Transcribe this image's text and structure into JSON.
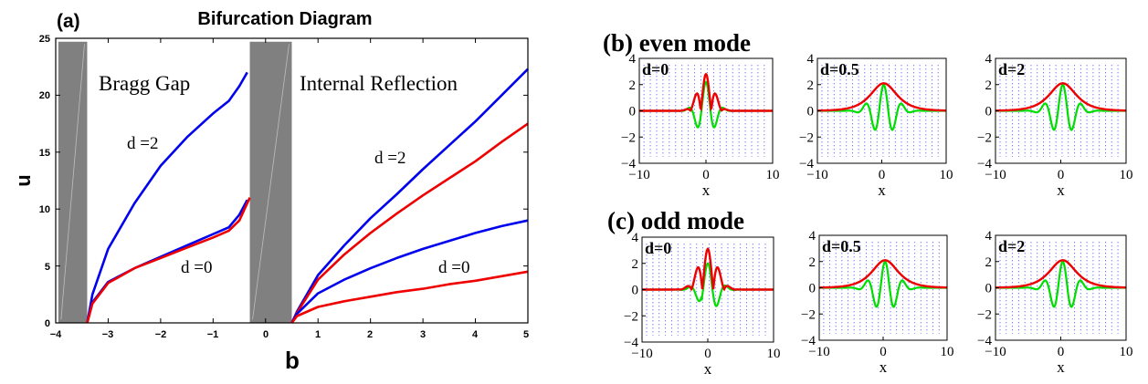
{
  "panel_a": {
    "label": "(a)",
    "title": "Bifurcation Diagram",
    "xlabel": "b",
    "ylabel": "u",
    "xticks": [
      "−4",
      "−3",
      "−2",
      "−1",
      "0",
      "1",
      "2",
      "3",
      "4",
      "5"
    ],
    "yticks": [
      "0",
      "5",
      "10",
      "15",
      "20",
      "25"
    ],
    "region_labels": {
      "bragg": "Bragg Gap",
      "internal": "Internal Reflection"
    },
    "curve_labels": {
      "bragg_d2": "d =2",
      "bragg_d0": "d =0",
      "ir_d2": "d =2",
      "ir_d0": "d =0"
    }
  },
  "panel_b": {
    "title": "(b) even mode"
  },
  "panel_c": {
    "title": "(c) odd mode"
  },
  "small_axes": {
    "xlabel": "x",
    "xticks": [
      "−10",
      "0",
      "10"
    ],
    "yticks": [
      "4",
      "2",
      "0",
      "−2",
      "−4"
    ],
    "d_labels": [
      "d=0",
      "d=0.5",
      "d=2"
    ]
  },
  "colors": {
    "blue": "#0000ee",
    "red": "#ee0000",
    "green": "#00dd00",
    "gray": "#808080"
  },
  "chart_data": [
    {
      "type": "line",
      "title": "Bifurcation Diagram",
      "xlabel": "b",
      "ylabel": "u",
      "xlim": [
        -4,
        5
      ],
      "ylim": [
        0,
        25
      ],
      "shaded_regions_x": [
        [
          -3.95,
          -3.4
        ],
        [
          -0.3,
          0.5
        ]
      ],
      "series": [
        {
          "name": "d =2",
          "color": "#0000ee",
          "x": [
            -3.4,
            -3.3,
            -3.0,
            -2.5,
            -2.0,
            -1.5,
            -1.0,
            -0.7,
            -0.5,
            -0.35
          ],
          "y": [
            0,
            2.5,
            6.5,
            10.5,
            13.8,
            16.3,
            18.4,
            19.5,
            20.8,
            22.0
          ]
        },
        {
          "name": "d =0",
          "color": "#0000ee",
          "x": [
            -3.4,
            -3.3,
            -3.0,
            -2.5,
            -2.0,
            -1.5,
            -1.0,
            -0.7,
            -0.5,
            -0.35
          ],
          "y": [
            0,
            1.8,
            3.6,
            4.8,
            5.8,
            6.8,
            7.8,
            8.4,
            9.5,
            10.8
          ]
        },
        {
          "name": "d =0",
          "color": "#ee0000",
          "x": [
            -3.4,
            -3.3,
            -3.0,
            -2.5,
            -2.0,
            -1.5,
            -1.0,
            -0.7,
            -0.5,
            -0.3
          ],
          "y": [
            0,
            1.7,
            3.5,
            4.8,
            5.7,
            6.6,
            7.5,
            8.1,
            9.0,
            11.0
          ]
        },
        {
          "name": "d =2",
          "color": "#0000ee",
          "x": [
            0.5,
            0.6,
            1.0,
            1.5,
            2.0,
            2.5,
            3.0,
            3.5,
            4.0,
            4.5,
            5.0
          ],
          "y": [
            0,
            1.0,
            4.2,
            6.8,
            9.2,
            11.3,
            13.5,
            15.6,
            17.7,
            20.0,
            22.3
          ]
        },
        {
          "name": "d =2",
          "color": "#ee0000",
          "x": [
            0.5,
            0.6,
            1.0,
            1.5,
            2.0,
            2.5,
            3.0,
            3.5,
            4.0,
            4.5,
            5.0
          ],
          "y": [
            0,
            0.9,
            3.8,
            6.0,
            7.9,
            9.6,
            11.2,
            12.7,
            14.2,
            15.9,
            17.5
          ]
        },
        {
          "name": "d =0",
          "color": "#0000ee",
          "x": [
            0.5,
            0.6,
            1.0,
            1.5,
            2.0,
            2.5,
            3.0,
            3.5,
            4.0,
            4.5,
            5.0
          ],
          "y": [
            0,
            0.8,
            2.6,
            3.8,
            4.8,
            5.7,
            6.5,
            7.2,
            7.9,
            8.5,
            9.0
          ]
        },
        {
          "name": "d =0",
          "color": "#ee0000",
          "x": [
            0.5,
            0.6,
            1.0,
            1.5,
            2.0,
            2.5,
            3.0,
            3.5,
            4.0,
            4.5,
            5.0
          ],
          "y": [
            0,
            0.6,
            1.4,
            1.9,
            2.3,
            2.7,
            3.0,
            3.4,
            3.7,
            4.1,
            4.5
          ]
        }
      ]
    }
  ]
}
